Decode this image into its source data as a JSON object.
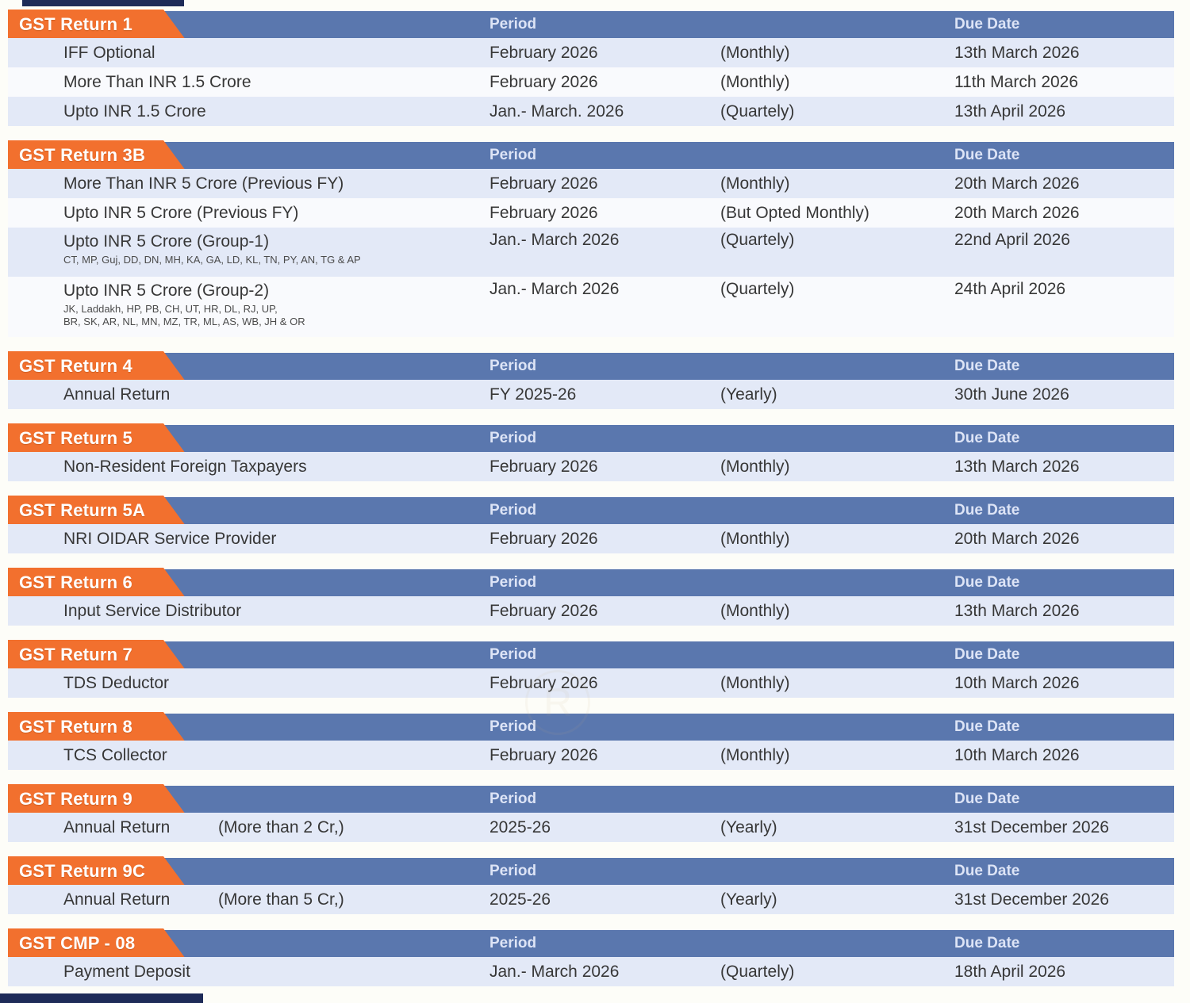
{
  "palette": {
    "accent_orange": "#f2702e",
    "header_blue": "#5a77ae",
    "navy_bar": "#1e2b58",
    "row_light": "#e3e9f7",
    "row_white": "#f9fafd",
    "text_dark": "#373737",
    "header_text": "#dde4f6"
  },
  "columns": {
    "period_label": "Period",
    "due_label": "Due Date"
  },
  "watermark": {
    "glyph": "R"
  },
  "sections": [
    {
      "title": "GST Return 1",
      "rows": [
        {
          "name": "IFF Optional",
          "period": "February 2026",
          "freq": "(Monthly)",
          "due": "13th March 2026"
        },
        {
          "name": "More Than INR 1.5 Crore",
          "period": "February 2026",
          "freq": "(Monthly)",
          "due": "11th March 2026"
        },
        {
          "name": "Upto INR 1.5 Crore",
          "period": "Jan.- March. 2026",
          "freq": "(Quartely)",
          "due": "13th April 2026"
        }
      ]
    },
    {
      "title": "GST Return 3B",
      "rows": [
        {
          "name": "More Than INR 5 Crore (Previous FY)",
          "period": "February 2026",
          "freq": "(Monthly)",
          "due": "20th March 2026"
        },
        {
          "name": "Upto INR 5 Crore (Previous FY)",
          "period": "February 2026",
          "freq": "(But Opted Monthly)",
          "due": "20th March 2026"
        },
        {
          "name": "Upto INR 5 Crore (Group-1)",
          "sub": "CT, MP, Guj, DD, DN, MH, KA, GA, LD, KL, TN, PY, AN, TG & AP",
          "period": "Jan.- March 2026",
          "freq": "(Quartely)",
          "due": "22nd April 2026"
        },
        {
          "name": "Upto INR 5 Crore (Group-2)",
          "sub": "JK, Laddakh, HP, PB, CH, UT, HR, DL, RJ, UP,\nBR, SK, AR, NL, MN, MZ, TR, ML, AS, WB, JH & OR",
          "period": "Jan.- March 2026",
          "freq": "(Quartely)",
          "due": "24th April 2026"
        }
      ]
    },
    {
      "title": "GST Return 4",
      "rows": [
        {
          "name": "Annual Return",
          "period": "FY 2025-26",
          "freq": "(Yearly)",
          "due": "30th June 2026"
        }
      ]
    },
    {
      "title": "GST Return 5",
      "rows": [
        {
          "name": "Non-Resident Foreign Taxpayers",
          "period": "February 2026",
          "freq": "(Monthly)",
          "due": "13th March 2026"
        }
      ]
    },
    {
      "title": "GST Return 5A",
      "rows": [
        {
          "name": "NRI OIDAR Service Provider",
          "period": "February 2026",
          "freq": "(Monthly)",
          "due": "20th March 2026"
        }
      ]
    },
    {
      "title": "GST Return 6",
      "rows": [
        {
          "name": "Input Service Distributor",
          "period": "February 2026",
          "freq": "(Monthly)",
          "due": "13th March 2026"
        }
      ]
    },
    {
      "title": "GST Return 7",
      "rows": [
        {
          "name": "TDS Deductor",
          "period": "February 2026",
          "freq": "(Monthly)",
          "due": "10th March 2026"
        }
      ]
    },
    {
      "title": "GST Return 8",
      "rows": [
        {
          "name": "TCS Collector",
          "period": "February 2026",
          "freq": "(Monthly)",
          "due": "10th March 2026"
        }
      ]
    },
    {
      "title": "GST Return 9",
      "rows": [
        {
          "name": "Annual Return",
          "name2": "(More than 2 Cr,)",
          "period": "2025-26",
          "freq": "(Yearly)",
          "due": "31st December 2026"
        }
      ]
    },
    {
      "title": "GST Return 9C",
      "rows": [
        {
          "name": "Annual Return",
          "name2": "(More than 5 Cr,)",
          "period": "2025-26",
          "freq": "(Yearly)",
          "due": "31st December 2026"
        }
      ]
    },
    {
      "title": "GST CMP - 08",
      "rows": [
        {
          "name": "Payment Deposit",
          "period": "Jan.- March 2026",
          "freq": "(Quartely)",
          "due": "18th April 2026"
        }
      ]
    }
  ]
}
